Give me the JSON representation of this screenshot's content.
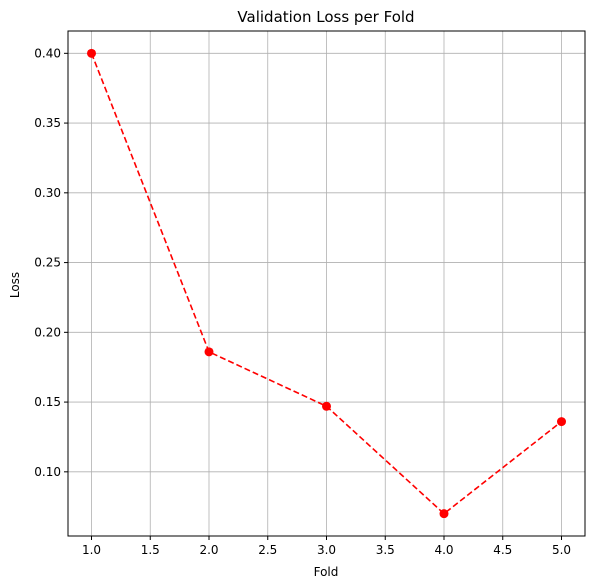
{
  "chart_data": {
    "type": "line",
    "title": "Validation Loss per Fold",
    "xlabel": "Fold",
    "ylabel": "Loss",
    "x": [
      1,
      2,
      3,
      4,
      5
    ],
    "series": [
      {
        "values": [
          0.4,
          0.186,
          0.147,
          0.07,
          0.136
        ]
      }
    ],
    "xlim": [
      0.8,
      5.2
    ],
    "ylim": [
      0.054,
      0.416
    ],
    "xticks": [
      1.0,
      1.5,
      2.0,
      2.5,
      3.0,
      3.5,
      4.0,
      4.5,
      5.0
    ],
    "xtick_labels": [
      "1.0",
      "1.5",
      "2.0",
      "2.5",
      "3.0",
      "3.5",
      "4.0",
      "4.5",
      "5.0"
    ],
    "yticks": [
      0.1,
      0.15,
      0.2,
      0.25,
      0.3,
      0.35,
      0.4
    ],
    "ytick_labels": [
      "0.10",
      "0.15",
      "0.20",
      "0.25",
      "0.30",
      "0.35",
      "0.40"
    ],
    "grid": true,
    "line_style": "dashed",
    "marker": "circle",
    "colors": {
      "series": "#ff0000",
      "grid": "#b0b0b0",
      "axes": "#000000"
    }
  }
}
